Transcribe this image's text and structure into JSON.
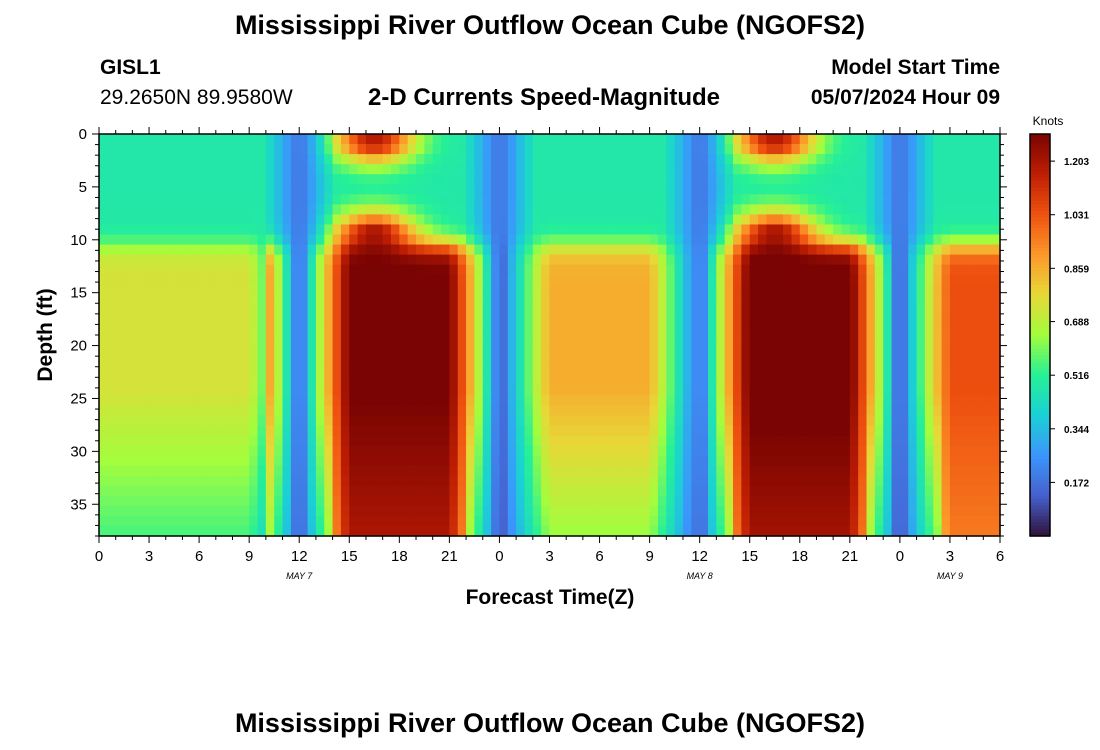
{
  "header": {
    "title": "Mississippi River Outflow Ocean Cube (NGOFS2)",
    "station": "GISL1",
    "coordinates": "29.2650N  89.9580W",
    "subtitle": "2-D Currents Speed-Magnitude",
    "model_start_label": "Model Start Time",
    "model_start_value": "05/07/2024 Hour 09"
  },
  "footer": {
    "title": "Mississippi River Outflow Ocean Cube (NGOFS2)"
  },
  "chart_data": {
    "type": "heatmap",
    "xlabel": "Forecast Time(Z)",
    "ylabel": "Depth (ft)",
    "x_range_hours": [
      0,
      54
    ],
    "x_ticks": [
      {
        "hour": 0,
        "label": "0"
      },
      {
        "hour": 3,
        "label": "3"
      },
      {
        "hour": 6,
        "label": "6"
      },
      {
        "hour": 9,
        "label": "9"
      },
      {
        "hour": 12,
        "label": "12"
      },
      {
        "hour": 15,
        "label": "15"
      },
      {
        "hour": 18,
        "label": "18"
      },
      {
        "hour": 21,
        "label": "21"
      },
      {
        "hour": 24,
        "label": "0"
      },
      {
        "hour": 27,
        "label": "3"
      },
      {
        "hour": 30,
        "label": "6"
      },
      {
        "hour": 33,
        "label": "9"
      },
      {
        "hour": 36,
        "label": "12"
      },
      {
        "hour": 39,
        "label": "15"
      },
      {
        "hour": 42,
        "label": "18"
      },
      {
        "hour": 45,
        "label": "21"
      },
      {
        "hour": 48,
        "label": "0"
      },
      {
        "hour": 51,
        "label": "3"
      },
      {
        "hour": 54,
        "label": "6"
      }
    ],
    "date_labels": [
      {
        "hour": 12,
        "label": "MAY 7"
      },
      {
        "hour": 36,
        "label": "MAY 8"
      },
      {
        "hour": 51,
        "label": "MAY 9"
      }
    ],
    "y_range_ft": [
      0,
      38
    ],
    "y_ticks": [
      0,
      5,
      10,
      15,
      20,
      25,
      30,
      35
    ],
    "colorbar": {
      "title": "Knots",
      "range": [
        0.0,
        1.29
      ],
      "tick_values": [
        0.172,
        0.344,
        0.516,
        0.688,
        0.859,
        1.031,
        1.203
      ],
      "tick_labels": [
        "0.172",
        "0.344",
        "0.516",
        "0.688",
        "0.859",
        "1.031",
        "1.203"
      ]
    },
    "surface_layer_depth_ft": 10.5,
    "slack_times_hours": [
      12,
      24,
      36,
      48
    ],
    "surface_peak_times_hours": [
      16.5,
      40.5
    ],
    "deep_peaks": [
      {
        "hour": 2.5,
        "speed": 0.68
      },
      {
        "hour": 17.5,
        "speed": 1.24
      },
      {
        "hour": 30,
        "speed": 0.8
      },
      {
        "hour": 41,
        "speed": 1.26
      },
      {
        "hour": 54,
        "speed": 0.98
      }
    ],
    "grid": false
  }
}
